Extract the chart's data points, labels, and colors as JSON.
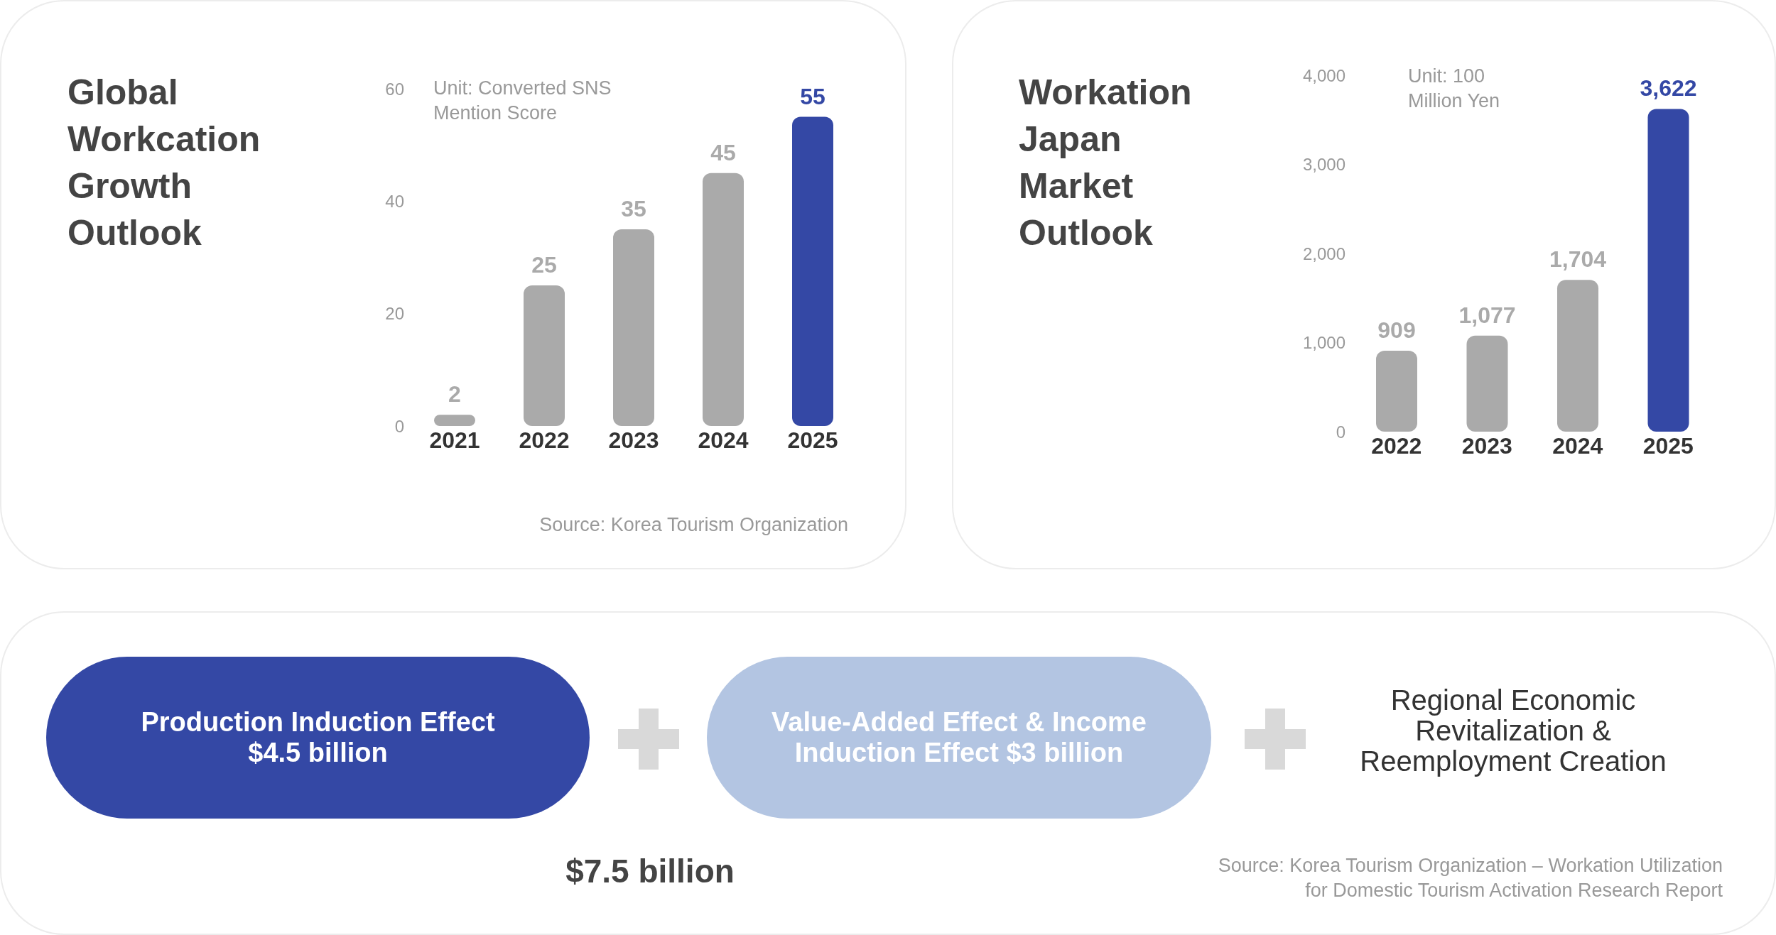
{
  "chart_data": [
    {
      "type": "bar",
      "title": "Global Workcation Growth Outlook",
      "categories": [
        "2021",
        "2022",
        "2023",
        "2024",
        "2025"
      ],
      "values": [
        2,
        25,
        35,
        45,
        55
      ],
      "colors": [
        "#aaaaaa",
        "#aaaaaa",
        "#aaaaaa",
        "#aaaaaa",
        "#3448a5"
      ],
      "ylim": [
        0,
        60
      ],
      "yticks": [
        0,
        20,
        40,
        60
      ],
      "grid": false,
      "data_labels": true,
      "annotations": [
        "Unit: Converted SNS Mention Score",
        "Source: Korea Tourism Organization"
      ]
    },
    {
      "type": "bar",
      "title": "Workation Japan Market Outlook",
      "categories": [
        "2022",
        "2023",
        "2024",
        "2025"
      ],
      "values": [
        909,
        1077,
        1704,
        3622
      ],
      "colors": [
        "#aaaaaa",
        "#aaaaaa",
        "#aaaaaa",
        "#3448a5"
      ],
      "ylim": [
        0,
        4000
      ],
      "yticks": [
        0,
        {
          "value": 1000,
          "label": "1,000"
        },
        {
          "value": 2000,
          "label": "2,000"
        },
        {
          "value": 3000,
          "label": "3,000"
        },
        {
          "value": 4000,
          "label": "4,000"
        }
      ],
      "grid": false,
      "value_labels": [
        "909",
        "1,077",
        "1,704",
        "3,622"
      ],
      "annotations": [
        "Unit: 100 Million Yen"
      ]
    },
    {
      "type": "other",
      "annotations": [
        "Production Induction Effect\n$4.5 billion",
        "Value-Added Effect & Income\nInduction Effect $3 billion",
        "Regional Economic\nRevitalization &\nReemployment Creation",
        "$7.5 billion",
        "Source: Korea Tourism Organization – Workation Utilization\nfor Domestic Tourism Activation Research Report"
      ]
    }
  ]
}
